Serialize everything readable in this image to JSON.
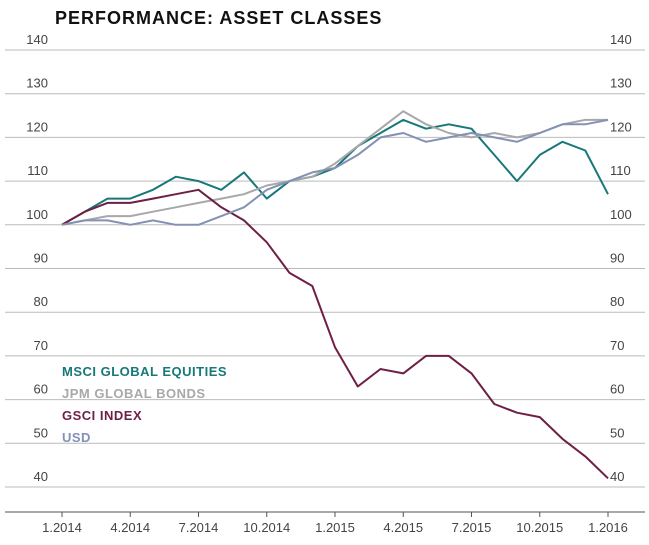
{
  "chart_data": {
    "type": "line",
    "title": "PERFORMANCE: ASSET CLASSES",
    "x": [
      "1.2014",
      "2.2014",
      "3.2014",
      "4.2014",
      "5.2014",
      "6.2014",
      "7.2014",
      "8.2014",
      "9.2014",
      "10.2014",
      "11.2014",
      "12.2014",
      "1.2015",
      "2.2015",
      "3.2015",
      "4.2015",
      "5.2015",
      "6.2015",
      "7.2015",
      "8.2015",
      "9.2015",
      "10.2015",
      "11.2015",
      "12.2015",
      "1.2016"
    ],
    "xticks": [
      "1.2014",
      "4.2014",
      "7.2014",
      "10.2014",
      "1.2015",
      "4.2015",
      "7.2015",
      "10.2015",
      "1.2016"
    ],
    "series": [
      {
        "name": "MSCI GLOBAL EQUITIES",
        "color": "#17787a",
        "values": [
          100,
          103,
          106,
          106,
          108,
          111,
          110,
          108,
          112,
          106,
          110,
          111,
          113,
          118,
          121,
          124,
          122,
          123,
          122,
          116,
          110,
          116,
          119,
          117,
          107
        ]
      },
      {
        "name": "JPM GLOBAL BONDS",
        "color": "#a8a8a8",
        "values": [
          100,
          101,
          102,
          102,
          103,
          104,
          105,
          106,
          107,
          109,
          110,
          111,
          114,
          118,
          122,
          126,
          123,
          121,
          120,
          121,
          120,
          121,
          123,
          124,
          124
        ]
      },
      {
        "name": "GSCI INDEX",
        "color": "#6e1f45",
        "values": [
          100,
          103,
          105,
          105,
          106,
          107,
          108,
          104,
          101,
          96,
          89,
          86,
          72,
          63,
          67,
          66,
          70,
          70,
          66,
          59,
          57,
          56,
          51,
          47,
          42
        ]
      },
      {
        "name": "USD",
        "color": "#8391b4",
        "values": [
          100,
          101,
          101,
          100,
          101,
          100,
          100,
          102,
          104,
          108,
          110,
          112,
          113,
          116,
          120,
          121,
          119,
          120,
          121,
          120,
          119,
          121,
          123,
          123,
          124
        ]
      }
    ],
    "ylim": [
      40,
      140
    ],
    "yticks": [
      40,
      50,
      60,
      70,
      80,
      90,
      100,
      110,
      120,
      130,
      140
    ],
    "grid": true
  }
}
